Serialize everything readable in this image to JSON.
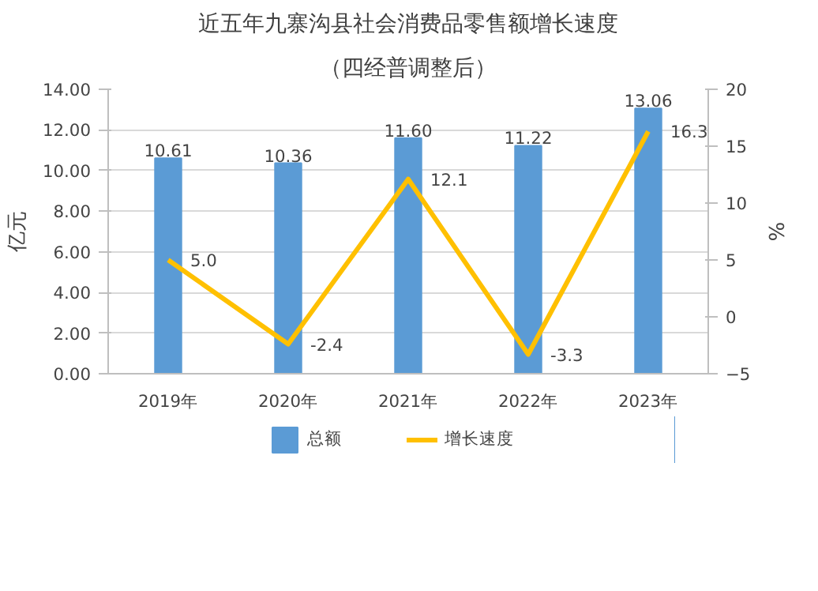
{
  "chart_data": {
    "type": "bar",
    "title": "近五年九寨沟县社会消费品零售额增长速度",
    "subtitle": "（四经普调整后）",
    "ylabel": "亿元",
    "y2label": "%",
    "categories": [
      "2019年",
      "2020年",
      "2021年",
      "2022年",
      "2023年"
    ],
    "series": [
      {
        "name": "总额",
        "color": "#5b9bd5",
        "values": [
          10.61,
          10.36,
          11.6,
          11.22,
          13.06
        ],
        "value_labels": [
          "10.61",
          "10.36",
          "11.60",
          "11.22",
          "13.06"
        ]
      },
      {
        "name": "增长速度",
        "type": "line",
        "axis": "y2",
        "color": "#ffc000",
        "values": [
          5.0,
          -2.4,
          12.1,
          -3.3,
          16.3
        ],
        "value_labels": [
          "5.0",
          "-2.4",
          "12.1",
          "-3.3",
          "16.3"
        ]
      }
    ],
    "ylim": [
      0,
      14
    ],
    "yticks": [
      {
        "value": 0,
        "label": "0.00"
      },
      {
        "value": 2,
        "label": "2.00"
      },
      {
        "value": 4,
        "label": "4.00"
      },
      {
        "value": 6,
        "label": "6.00"
      },
      {
        "value": 8,
        "label": "8.00"
      },
      {
        "value": 10,
        "label": "10.00"
      },
      {
        "value": 12,
        "label": "12.00"
      },
      {
        "value": 14,
        "label": "14.00"
      }
    ],
    "y2lim": [
      -5,
      20
    ],
    "y2ticks": [
      -5,
      0,
      5,
      10,
      15,
      20
    ],
    "grid": "y",
    "legend": "bottom",
    "marker": "none",
    "line_style": "solid"
  }
}
